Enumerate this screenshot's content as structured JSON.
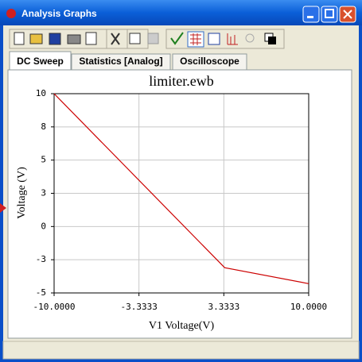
{
  "window": {
    "title": "Analysis Graphs"
  },
  "tabs": [
    "DC Sweep",
    "Statistics [Analog]",
    "Oscilloscope"
  ],
  "chart_data": {
    "type": "line",
    "title": "limiter.ewb",
    "x_label": "V1 Voltage(V)",
    "y_label": "Voltage (V)",
    "x": [
      -10,
      3.4,
      10
    ],
    "series": [
      {
        "name": "Voltage",
        "color": "#cc0000",
        "values": [
          10,
          -3.1,
          -4.3
        ]
      }
    ],
    "xlim": [
      -10,
      10
    ],
    "xticks": [
      {
        "value": -10,
        "label": "-10.0000"
      },
      {
        "value": -3.3333,
        "label": "-3.3333"
      },
      {
        "value": 3.3333,
        "label": "3.3333"
      },
      {
        "value": 10,
        "label": "10.0000"
      }
    ],
    "ylim": [
      -5,
      10
    ],
    "yticks": [
      10,
      {
        "value": 7.5,
        "label": "8"
      },
      5,
      {
        "value": 2.5,
        "label": "3"
      },
      0,
      {
        "value": -2.5,
        "label": "-3"
      },
      -5
    ],
    "grid": true
  }
}
